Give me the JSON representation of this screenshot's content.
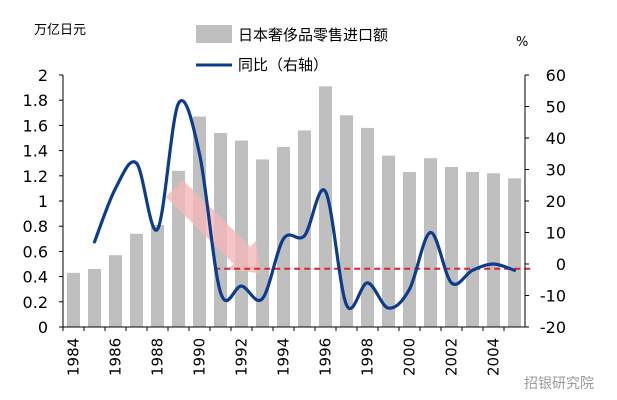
{
  "chart_data": {
    "type": "bar+line",
    "y_left_unit": "万亿日元",
    "y_right_unit": "%",
    "legend": [
      {
        "label": "日本奢侈品零售进口额",
        "kind": "bar",
        "color": "#bfbfbf"
      },
      {
        "label": "同比（右轴）",
        "kind": "line",
        "color": "#0d3c8c"
      }
    ],
    "x_tick_labels": [
      "1984",
      "1986",
      "1988",
      "1990",
      "1992",
      "1994",
      "1996",
      "1998",
      "2000",
      "2002",
      "2004"
    ],
    "y_left_ticks": [
      "0",
      "0.2",
      "0.4",
      "0.6",
      "0.8",
      "1",
      "1.2",
      "1.4",
      "1.6",
      "1.8",
      "2"
    ],
    "y_right_ticks": [
      "-20",
      "-10",
      "0",
      "10",
      "20",
      "30",
      "40",
      "50",
      "60"
    ],
    "ylim_left": [
      0,
      2
    ],
    "ylim_right": [
      -20,
      60
    ],
    "categories": [
      1984,
      1985,
      1986,
      1987,
      1988,
      1989,
      1990,
      1991,
      1992,
      1993,
      1994,
      1995,
      1996,
      1997,
      1998,
      1999,
      2000,
      2001,
      2002,
      2003,
      2004,
      2005
    ],
    "series": [
      {
        "name": "日本奢侈品零售进口额",
        "kind": "bar",
        "axis": "left",
        "values": [
          0.43,
          0.46,
          0.57,
          0.74,
          0.81,
          1.24,
          1.67,
          1.54,
          1.48,
          1.33,
          1.43,
          1.56,
          1.91,
          1.68,
          1.58,
          1.36,
          1.23,
          1.34,
          1.27,
          1.23,
          1.22,
          1.18
        ]
      },
      {
        "name": "同比（右轴）",
        "kind": "line",
        "axis": "right",
        "x": [
          1985,
          1986,
          1987,
          1988,
          1989,
          1990,
          1991,
          1992,
          1993,
          1994,
          1995,
          1996,
          1997,
          1998,
          1999,
          2000,
          2001,
          2002,
          2003,
          2004,
          2005
        ],
        "values": [
          7,
          24,
          32,
          11,
          51,
          35,
          -9,
          -7,
          -11,
          8,
          9,
          23,
          -13,
          -6,
          -14,
          -8,
          10,
          -6,
          -2,
          0,
          -2
        ]
      }
    ],
    "reference_line": {
      "axis": "right",
      "value": -1.5,
      "style": "dashed",
      "color": "#d9262c"
    },
    "arrow": {
      "from_year": 1989,
      "to_year": 1993,
      "color": "#f4b6b8"
    }
  },
  "watermark": "招银研究院"
}
